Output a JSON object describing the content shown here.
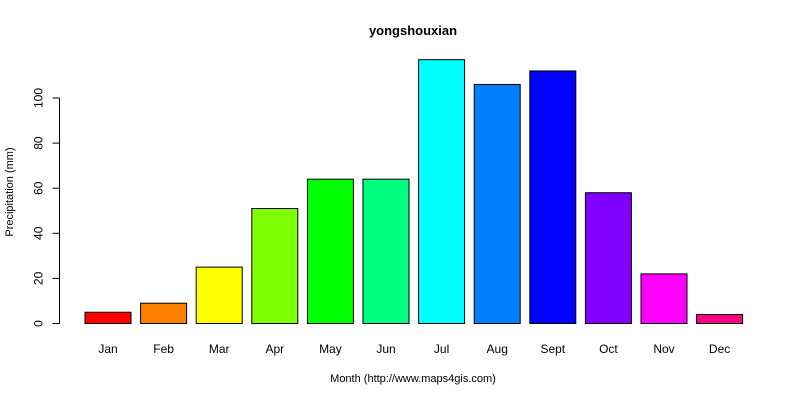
{
  "chart_data": {
    "type": "bar",
    "title": "yongshouxian",
    "xlabel": "Month (http://www.maps4gis.com)",
    "ylabel": "Precipitation (mm)",
    "categories": [
      "Jan",
      "Feb",
      "Mar",
      "Apr",
      "May",
      "Jun",
      "Jul",
      "Aug",
      "Sept",
      "Oct",
      "Nov",
      "Dec"
    ],
    "values": [
      5,
      9,
      25,
      51,
      64,
      64,
      117,
      106,
      112,
      58,
      22,
      4
    ],
    "colors": [
      "#FF0000",
      "#FF8000",
      "#FFFF00",
      "#80FF00",
      "#00FF00",
      "#00FF80",
      "#00FFFF",
      "#0080FF",
      "#0000FF",
      "#8000FF",
      "#FF00FF",
      "#FF0080"
    ],
    "yticks": [
      0,
      20,
      40,
      60,
      80,
      100
    ],
    "ylim": [
      0,
      117
    ],
    "grid": false,
    "legend": false
  }
}
